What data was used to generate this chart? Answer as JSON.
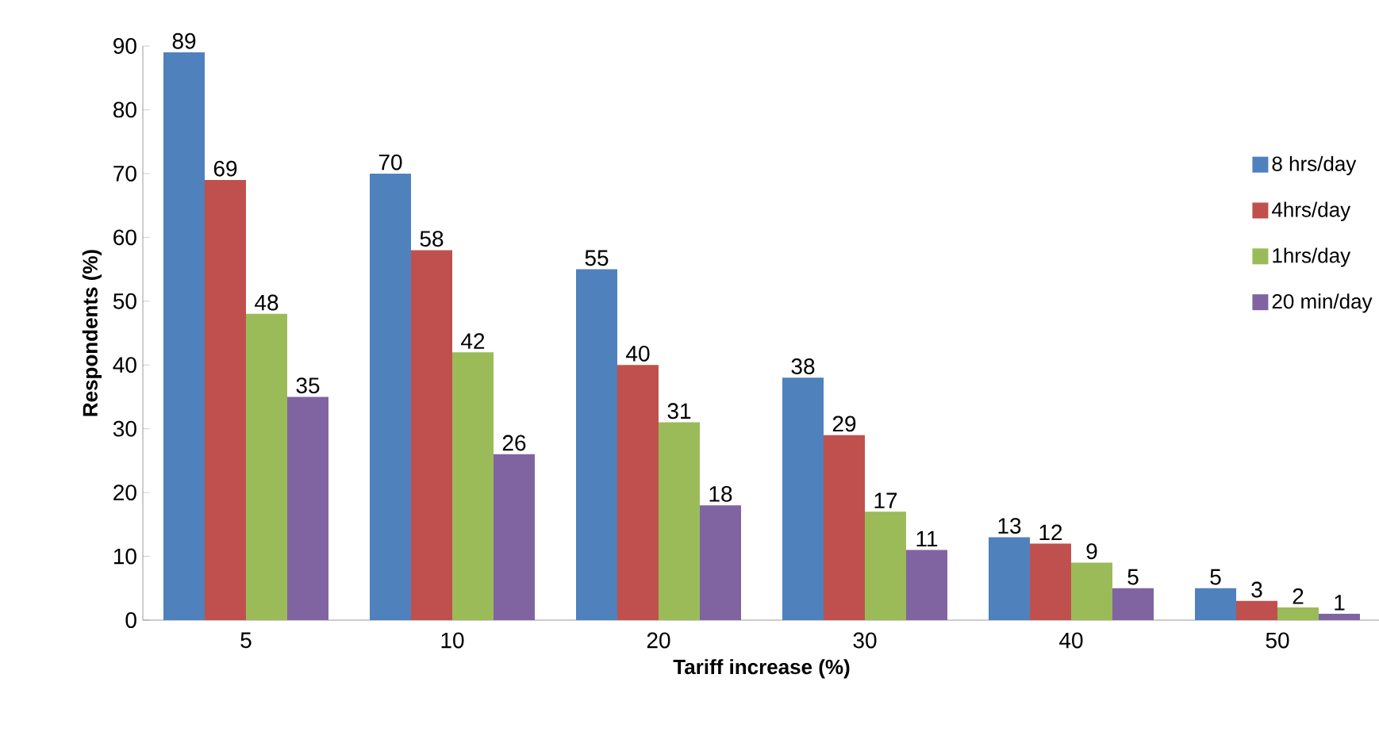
{
  "chart_data": {
    "type": "bar",
    "xlabel": "Tariff increase (%)",
    "ylabel": "Respondents (%)",
    "categories": [
      "5",
      "10",
      "20",
      "30",
      "40",
      "50"
    ],
    "series": [
      {
        "name": "8 hrs/day",
        "color": "#4f81bd",
        "values": [
          89,
          70,
          55,
          38,
          13,
          5
        ]
      },
      {
        "name": "4hrs/day",
        "color": "#c0504d",
        "values": [
          69,
          58,
          40,
          29,
          12,
          3
        ]
      },
      {
        "name": "1hrs/day",
        "color": "#9bbb59",
        "values": [
          48,
          42,
          31,
          17,
          9,
          2
        ]
      },
      {
        "name": "20 min/day",
        "color": "#8064a2",
        "values": [
          35,
          26,
          18,
          11,
          5,
          1
        ]
      }
    ],
    "data_labels": true,
    "ylim": [
      0,
      90
    ],
    "yticks": [
      0,
      10,
      20,
      30,
      40,
      50,
      60,
      70,
      80,
      90
    ],
    "grid": false,
    "legend": "right"
  }
}
